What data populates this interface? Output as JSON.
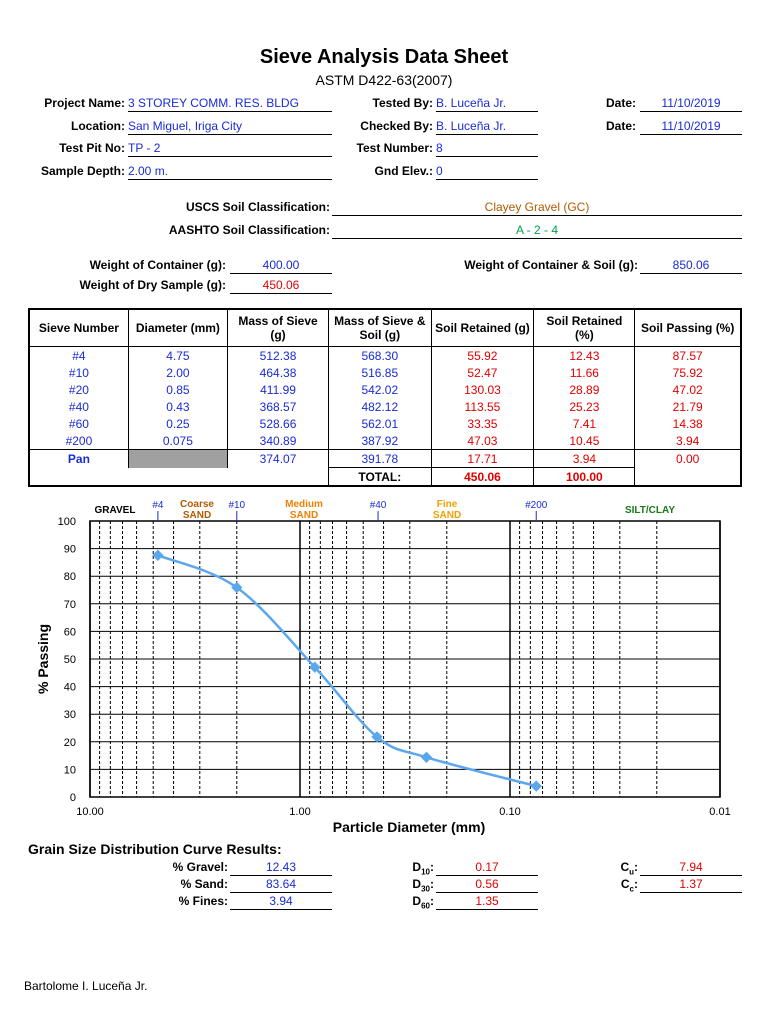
{
  "header": {
    "title": "Sieve Analysis Data Sheet",
    "subtitle": "ASTM D422-63(2007)"
  },
  "info": {
    "project_name_label": "Project Name:",
    "project_name": "3 STOREY COMM. RES. BLDG",
    "location_label": "Location:",
    "location": "San Miguel, Iriga City",
    "test_pit_label": "Test Pit No:",
    "test_pit": "TP - 2",
    "sample_depth_label": "Sample Depth:",
    "sample_depth": "2.00 m.",
    "tested_by_label": "Tested By:",
    "tested_by": "B. Luceña Jr.",
    "checked_by_label": "Checked By:",
    "checked_by": "B. Luceña Jr.",
    "test_number_label": "Test Number:",
    "test_number": "8",
    "gnd_elev_label": "Gnd Elev.:",
    "gnd_elev": "0",
    "date1_label": "Date:",
    "date1": "11/10/2019",
    "date2_label": "Date:",
    "date2": "11/10/2019"
  },
  "classification": {
    "uscs_label": "USCS Soil Classification:",
    "uscs": "Clayey Gravel (GC)",
    "aashto_label": "AASHTO Soil Classification:",
    "aashto": "A - 2 - 4",
    "uscs_color": "#b25a00",
    "aashto_color": "#00a04a"
  },
  "weights": {
    "container_label": "Weight of Container (g):",
    "container": "400.00",
    "dry_sample_label": "Weight of Dry Sample (g):",
    "dry_sample": "450.06",
    "container_soil_label": "Weight of Container & Soil (g):",
    "container_soil": "850.06"
  },
  "table": {
    "headers": [
      "Sieve Number",
      "Diameter   (mm)",
      "Mass of Sieve (g)",
      "Mass of Sieve & Soil (g)",
      "Soil Retained (g)",
      "Soil Retained (%)",
      "Soil Passing (%)"
    ],
    "rows": [
      [
        "#4",
        "4.75",
        "512.38",
        "568.30",
        "55.92",
        "12.43",
        "87.57"
      ],
      [
        "#10",
        "2.00",
        "464.38",
        "516.85",
        "52.47",
        "11.66",
        "75.92"
      ],
      [
        "#20",
        "0.85",
        "411.99",
        "542.02",
        "130.03",
        "28.89",
        "47.02"
      ],
      [
        "#40",
        "0.43",
        "368.57",
        "482.12",
        "113.55",
        "25.23",
        "21.79"
      ],
      [
        "#60",
        "0.25",
        "528.66",
        "562.01",
        "33.35",
        "7.41",
        "14.38"
      ],
      [
        "#200",
        "0.075",
        "340.89",
        "387.92",
        "47.03",
        "10.45",
        "3.94"
      ]
    ],
    "pan": [
      "Pan",
      "",
      "374.07",
      "391.78",
      "17.71",
      "3.94",
      "0.00"
    ],
    "total_label": "TOTAL:",
    "total_retained_g": "450.06",
    "total_retained_pct": "100.00"
  },
  "chart_data": {
    "type": "scatter",
    "xlabel": "Particle Diameter (mm)",
    "ylabel": "% Passing",
    "x_scale": "log",
    "x_reversed": true,
    "xlim": [
      10,
      0.01
    ],
    "ylim": [
      0,
      100
    ],
    "x_ticks": [
      "10.00",
      "1.00",
      "0.10",
      "0.01"
    ],
    "y_ticks": [
      "0",
      "10",
      "20",
      "30",
      "40",
      "50",
      "60",
      "70",
      "80",
      "90",
      "100"
    ],
    "grid": true,
    "series": [
      {
        "x": [
          4.75,
          2.0,
          0.85,
          0.43,
          0.25,
          0.075
        ],
        "y": [
          87.57,
          75.92,
          47.02,
          21.79,
          14.38,
          3.94
        ],
        "color": "#5aa7ee"
      }
    ],
    "sieve_markers": [
      {
        "label": "#4",
        "x": 4.75
      },
      {
        "label": "#10",
        "x": 2.0
      },
      {
        "label": "#40",
        "x": 0.425
      },
      {
        "label": "#200",
        "x": 0.075
      }
    ],
    "zones": [
      {
        "label": "GRAVEL",
        "color": "#000000"
      },
      {
        "label": "Coarse",
        "label2": "SAND",
        "color": "#b25a00"
      },
      {
        "label": "Medium",
        "label2": "SAND",
        "color": "#f08000"
      },
      {
        "label": "Fine",
        "label2": "SAND",
        "color": "#f0a000"
      },
      {
        "label": "SILT/CLAY",
        "color": "#1a7a1a"
      }
    ]
  },
  "results": {
    "title": "Grain Size Distribution Curve Results:",
    "gravel_label": "% Gravel:",
    "gravel": "12.43",
    "sand_label": "% Sand:",
    "sand": "83.64",
    "fines_label": "% Fines:",
    "fines": "3.94",
    "d10_label": "D",
    "d10_sub": "10",
    "d10": "0.17",
    "d30_label": "D",
    "d30_sub": "30",
    "d30": "0.56",
    "d60_label": "D",
    "d60_sub": "60",
    "d60": "1.35",
    "cu_label": "C",
    "cu_sub": "u",
    "cu": "7.94",
    "cc_label": "C",
    "cc_sub": "c",
    "cc": "1.37"
  },
  "footer": {
    "author": "Bartolome I. Luceña Jr."
  }
}
